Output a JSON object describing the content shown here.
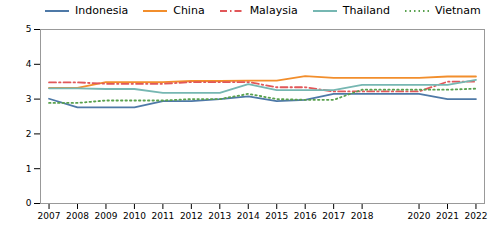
{
  "chart_data": {
    "type": "line",
    "x": [
      2007,
      2008,
      2009,
      2010,
      2011,
      2012,
      2013,
      2014,
      2015,
      2016,
      2017,
      2018,
      2020,
      2021,
      2022
    ],
    "series": [
      {
        "name": "Indonesia",
        "line_style": "solid",
        "values": [
          3.01,
          2.76,
          2.76,
          2.76,
          2.94,
          2.94,
          3.0,
          3.08,
          2.94,
          2.98,
          3.15,
          3.15,
          3.15,
          3.0,
          3.0
        ]
      },
      {
        "name": "China",
        "line_style": "solid",
        "values": [
          3.32,
          3.32,
          3.49,
          3.49,
          3.49,
          3.52,
          3.52,
          3.53,
          3.53,
          3.66,
          3.61,
          3.61,
          3.61,
          3.65,
          3.65
        ]
      },
      {
        "name": "Malaysia",
        "line_style": "dashdot",
        "values": [
          3.48,
          3.48,
          3.44,
          3.44,
          3.44,
          3.49,
          3.49,
          3.49,
          3.34,
          3.34,
          3.22,
          3.22,
          3.22,
          3.5,
          3.5
        ]
      },
      {
        "name": "Thailand",
        "line_style": "solid",
        "values": [
          3.31,
          3.31,
          3.29,
          3.29,
          3.18,
          3.18,
          3.18,
          3.43,
          3.26,
          3.26,
          3.26,
          3.41,
          3.41,
          3.41,
          3.55
        ]
      },
      {
        "name": "Vietnam",
        "line_style": "dotted",
        "values": [
          2.89,
          2.89,
          2.96,
          2.96,
          2.96,
          3.0,
          3.0,
          3.15,
          3.0,
          2.98,
          2.98,
          3.27,
          3.27,
          3.27,
          3.3
        ]
      }
    ],
    "xlim": [
      2006.7,
      2022.3
    ],
    "xticks": [
      2007,
      2008,
      2009,
      2010,
      2011,
      2012,
      2013,
      2014,
      2015,
      2016,
      2017,
      2018,
      2020,
      2021,
      2022
    ],
    "ylim": [
      0,
      5
    ],
    "yticks": [
      0,
      1,
      2,
      3,
      4,
      5
    ],
    "grid": false,
    "legend": "upper left"
  }
}
